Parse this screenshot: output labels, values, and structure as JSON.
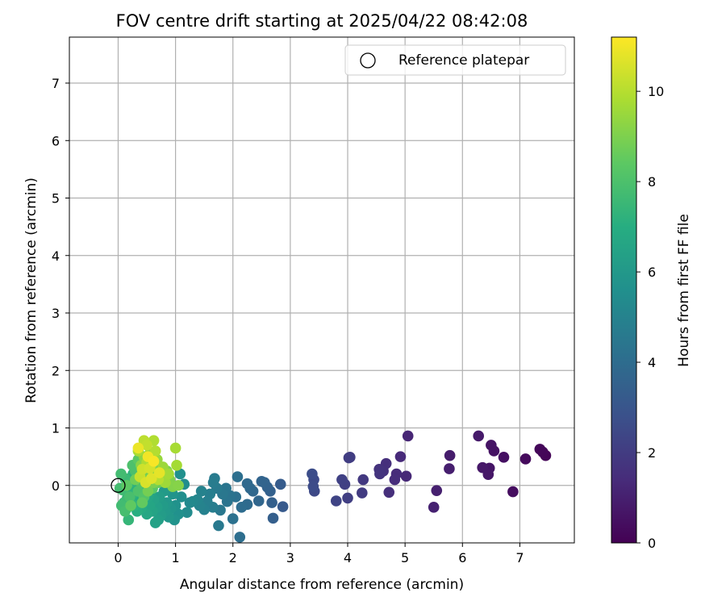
{
  "chart_data": {
    "type": "scatter",
    "title": "FOV centre drift starting at 2025/04/22 08:42:08",
    "xlabel": "Angular distance from reference (arcmin)",
    "ylabel": "Rotation from reference (arcmin)",
    "xlim": [
      -0.85,
      7.95
    ],
    "ylim": [
      -1.0,
      7.8
    ],
    "xticks": [
      0,
      1,
      2,
      3,
      4,
      5,
      6,
      7
    ],
    "yticks": [
      0,
      1,
      2,
      3,
      4,
      5,
      6,
      7
    ],
    "grid": true,
    "legend": {
      "placement": "top-right",
      "entries": [
        "Reference platepar"
      ]
    },
    "reference_point": {
      "x": 0,
      "y": 0,
      "label": "Reference platepar"
    },
    "colorbar": {
      "label": "Hours from first FF file",
      "min": 0,
      "max": 11.2,
      "ticks": [
        0,
        2,
        4,
        6,
        8,
        10
      ],
      "colormap": "viridis",
      "colormap_stops": [
        "#440154",
        "#472c7a",
        "#3b518b",
        "#2c718e",
        "#21908d",
        "#27ad81",
        "#5cc863",
        "#aadc32",
        "#fde725"
      ]
    },
    "points": [
      {
        "x": 7.45,
        "y": 0.52,
        "t": 0.1
      },
      {
        "x": 7.4,
        "y": 0.58,
        "t": 0.15
      },
      {
        "x": 7.35,
        "y": 0.63,
        "t": 0.2
      },
      {
        "x": 7.1,
        "y": 0.46,
        "t": 0.3
      },
      {
        "x": 6.88,
        "y": -0.11,
        "t": 0.4
      },
      {
        "x": 6.72,
        "y": 0.49,
        "t": 0.5
      },
      {
        "x": 6.55,
        "y": 0.6,
        "t": 0.55
      },
      {
        "x": 6.5,
        "y": 0.7,
        "t": 0.6
      },
      {
        "x": 6.47,
        "y": 0.3,
        "t": 0.65
      },
      {
        "x": 6.45,
        "y": 0.19,
        "t": 0.7
      },
      {
        "x": 6.35,
        "y": 0.31,
        "t": 0.75
      },
      {
        "x": 6.28,
        "y": 0.86,
        "t": 0.8
      },
      {
        "x": 5.78,
        "y": 0.52,
        "t": 0.9
      },
      {
        "x": 5.77,
        "y": 0.29,
        "t": 0.95
      },
      {
        "x": 5.55,
        "y": -0.09,
        "t": 1.0
      },
      {
        "x": 5.5,
        "y": -0.38,
        "t": 1.05
      },
      {
        "x": 5.05,
        "y": 0.86,
        "t": 1.2
      },
      {
        "x": 5.02,
        "y": 0.16,
        "t": 1.3
      },
      {
        "x": 4.92,
        "y": 0.5,
        "t": 1.35
      },
      {
        "x": 4.85,
        "y": 0.2,
        "t": 1.4
      },
      {
        "x": 4.82,
        "y": 0.1,
        "t": 1.45
      },
      {
        "x": 4.72,
        "y": -0.12,
        "t": 1.5
      },
      {
        "x": 4.67,
        "y": 0.38,
        "t": 1.55
      },
      {
        "x": 4.62,
        "y": 0.25,
        "t": 1.6
      },
      {
        "x": 4.55,
        "y": 0.28,
        "t": 1.65
      },
      {
        "x": 4.56,
        "y": 0.2,
        "t": 1.7
      },
      {
        "x": 4.27,
        "y": 0.1,
        "t": 1.9
      },
      {
        "x": 4.25,
        "y": -0.13,
        "t": 1.95
      },
      {
        "x": 4.04,
        "y": 0.49,
        "t": 2.0
      },
      {
        "x": 4.02,
        "y": 0.48,
        "t": 2.05
      },
      {
        "x": 4.0,
        "y": -0.22,
        "t": 2.1
      },
      {
        "x": 3.95,
        "y": 0.02,
        "t": 2.15
      },
      {
        "x": 3.9,
        "y": 0.1,
        "t": 2.2
      },
      {
        "x": 3.8,
        "y": -0.27,
        "t": 2.3
      },
      {
        "x": 3.42,
        "y": -0.1,
        "t": 2.5
      },
      {
        "x": 3.41,
        "y": 0.1,
        "t": 2.55
      },
      {
        "x": 3.4,
        "y": -0.02,
        "t": 2.6
      },
      {
        "x": 3.38,
        "y": 0.2,
        "t": 2.65
      },
      {
        "x": 2.87,
        "y": -0.37,
        "t": 3.2
      },
      {
        "x": 2.83,
        "y": 0.02,
        "t": 3.3
      },
      {
        "x": 2.7,
        "y": -0.57,
        "t": 3.4
      },
      {
        "x": 2.68,
        "y": -0.3,
        "t": 3.45
      },
      {
        "x": 2.65,
        "y": -0.1,
        "t": 3.5
      },
      {
        "x": 2.6,
        "y": -0.03,
        "t": 3.55
      },
      {
        "x": 2.55,
        "y": 0.05,
        "t": 3.6
      },
      {
        "x": 2.5,
        "y": 0.07,
        "t": 3.65
      },
      {
        "x": 2.45,
        "y": -0.27,
        "t": 3.7
      },
      {
        "x": 2.35,
        "y": -0.1,
        "t": 3.75
      },
      {
        "x": 2.3,
        "y": -0.05,
        "t": 3.8
      },
      {
        "x": 2.25,
        "y": 0.03,
        "t": 3.85
      },
      {
        "x": 2.25,
        "y": -0.33,
        "t": 3.9
      },
      {
        "x": 2.15,
        "y": -0.38,
        "t": 4.0
      },
      {
        "x": 2.12,
        "y": -0.9,
        "t": 4.05
      },
      {
        "x": 2.08,
        "y": 0.15,
        "t": 4.1
      },
      {
        "x": 2.05,
        "y": -0.2,
        "t": 4.15
      },
      {
        "x": 2.0,
        "y": -0.58,
        "t": 4.2
      },
      {
        "x": 1.95,
        "y": -0.18,
        "t": 4.3
      },
      {
        "x": 1.9,
        "y": -0.28,
        "t": 4.35
      },
      {
        "x": 1.88,
        "y": -0.05,
        "t": 4.4
      },
      {
        "x": 1.82,
        "y": -0.15,
        "t": 4.45
      },
      {
        "x": 1.78,
        "y": -0.43,
        "t": 4.5
      },
      {
        "x": 1.75,
        "y": -0.7,
        "t": 4.55
      },
      {
        "x": 1.72,
        "y": -0.05,
        "t": 4.6
      },
      {
        "x": 1.68,
        "y": 0.12,
        "t": 4.65
      },
      {
        "x": 1.66,
        "y": 0.05,
        "t": 4.7
      },
      {
        "x": 1.65,
        "y": -0.38,
        "t": 4.75
      },
      {
        "x": 1.6,
        "y": -0.15,
        "t": 4.8
      },
      {
        "x": 1.55,
        "y": -0.28,
        "t": 4.85
      },
      {
        "x": 1.5,
        "y": -0.42,
        "t": 4.9
      },
      {
        "x": 1.45,
        "y": -0.1,
        "t": 4.95
      },
      {
        "x": 1.42,
        "y": -0.35,
        "t": 5.0
      },
      {
        "x": 1.38,
        "y": -0.25,
        "t": 5.1
      },
      {
        "x": 1.3,
        "y": -0.28,
        "t": 5.2
      },
      {
        "x": 1.25,
        "y": -0.3,
        "t": 5.3
      },
      {
        "x": 1.2,
        "y": -0.47,
        "t": 5.4
      },
      {
        "x": 1.15,
        "y": 0.02,
        "t": 5.5
      },
      {
        "x": 1.1,
        "y": -0.2,
        "t": 5.55
      },
      {
        "x": 1.08,
        "y": 0.2,
        "t": 5.6
      },
      {
        "x": 1.05,
        "y": -0.5,
        "t": 5.65
      },
      {
        "x": 1.0,
        "y": -0.35,
        "t": 5.7
      },
      {
        "x": 0.98,
        "y": -0.6,
        "t": 5.75
      },
      {
        "x": 0.95,
        "y": -0.15,
        "t": 5.8
      },
      {
        "x": 0.92,
        "y": -0.4,
        "t": 5.85
      },
      {
        "x": 0.9,
        "y": 0.08,
        "t": 5.9
      },
      {
        "x": 0.88,
        "y": -0.55,
        "t": 5.95
      },
      {
        "x": 0.85,
        "y": -0.3,
        "t": 6.0
      },
      {
        "x": 0.82,
        "y": -0.45,
        "t": 6.05
      },
      {
        "x": 0.8,
        "y": -0.1,
        "t": 6.1
      },
      {
        "x": 0.78,
        "y": -0.35,
        "t": 6.15
      },
      {
        "x": 0.75,
        "y": -0.52,
        "t": 6.2
      },
      {
        "x": 0.72,
        "y": -0.2,
        "t": 6.25
      },
      {
        "x": 0.7,
        "y": -0.6,
        "t": 6.3
      },
      {
        "x": 0.68,
        "y": -0.38,
        "t": 6.35
      },
      {
        "x": 0.65,
        "y": -0.65,
        "t": 6.4
      },
      {
        "x": 0.62,
        "y": -0.25,
        "t": 6.45
      },
      {
        "x": 0.6,
        "y": -0.45,
        "t": 6.5
      },
      {
        "x": 0.58,
        "y": -0.1,
        "t": 6.55
      },
      {
        "x": 0.55,
        "y": -0.35,
        "t": 6.6
      },
      {
        "x": 0.52,
        "y": -0.2,
        "t": 6.65
      },
      {
        "x": 0.5,
        "y": -0.5,
        "t": 6.7
      },
      {
        "x": 0.48,
        "y": 0.0,
        "t": 6.75
      },
      {
        "x": 0.45,
        "y": -0.3,
        "t": 6.8
      },
      {
        "x": 0.42,
        "y": -0.15,
        "t": 6.85
      },
      {
        "x": 0.4,
        "y": -0.4,
        "t": 6.9
      },
      {
        "x": 0.38,
        "y": 0.1,
        "t": 6.95
      },
      {
        "x": 0.35,
        "y": -0.25,
        "t": 7.0
      },
      {
        "x": 0.33,
        "y": -0.45,
        "t": 7.05
      },
      {
        "x": 0.3,
        "y": -0.05,
        "t": 7.1
      },
      {
        "x": 0.28,
        "y": -0.35,
        "t": 7.15
      },
      {
        "x": 0.26,
        "y": 0.2,
        "t": 7.2
      },
      {
        "x": 0.25,
        "y": -0.15,
        "t": 7.25
      },
      {
        "x": 0.22,
        "y": -0.3,
        "t": 7.3
      },
      {
        "x": 0.2,
        "y": 0.05,
        "t": 7.35
      },
      {
        "x": 0.18,
        "y": -0.6,
        "t": 7.4
      },
      {
        "x": 0.16,
        "y": -0.22,
        "t": 7.45
      },
      {
        "x": 0.15,
        "y": -0.4,
        "t": 7.5
      },
      {
        "x": 0.12,
        "y": 0.12,
        "t": 7.55
      },
      {
        "x": 0.1,
        "y": -0.3,
        "t": 7.6
      },
      {
        "x": 0.08,
        "y": -0.08,
        "t": 7.65
      },
      {
        "x": 0.06,
        "y": -0.35,
        "t": 7.7
      },
      {
        "x": 0.05,
        "y": 0.2,
        "t": 7.75
      },
      {
        "x": 0.03,
        "y": -0.05,
        "t": 7.8
      },
      {
        "x": 0.12,
        "y": -0.45,
        "t": 7.85
      },
      {
        "x": 0.2,
        "y": -0.2,
        "t": 7.9
      },
      {
        "x": 0.3,
        "y": 0.25,
        "t": 7.95
      },
      {
        "x": 0.25,
        "y": 0.35,
        "t": 8.0
      },
      {
        "x": 0.35,
        "y": -0.1,
        "t": 8.05
      },
      {
        "x": 0.4,
        "y": 0.05,
        "t": 8.1
      },
      {
        "x": 0.45,
        "y": -0.2,
        "t": 8.15
      },
      {
        "x": 0.5,
        "y": 0.3,
        "t": 8.2
      },
      {
        "x": 0.55,
        "y": 0.1,
        "t": 8.25
      },
      {
        "x": 0.6,
        "y": -0.05,
        "t": 8.3
      },
      {
        "x": 0.35,
        "y": 0.45,
        "t": 8.35
      },
      {
        "x": 0.15,
        "y": 0.0,
        "t": 8.4
      },
      {
        "x": 0.22,
        "y": -0.35,
        "t": 8.45
      },
      {
        "x": 0.42,
        "y": -0.3,
        "t": 8.5
      },
      {
        "x": 0.65,
        "y": 0.2,
        "t": 8.55
      },
      {
        "x": 0.7,
        "y": 0.05,
        "t": 8.6
      },
      {
        "x": 0.75,
        "y": 0.3,
        "t": 8.65
      },
      {
        "x": 0.8,
        "y": 0.15,
        "t": 8.7
      },
      {
        "x": 0.3,
        "y": 0.1,
        "t": 8.75
      },
      {
        "x": 0.48,
        "y": 0.2,
        "t": 8.8
      },
      {
        "x": 0.52,
        "y": -0.1,
        "t": 8.85
      },
      {
        "x": 0.58,
        "y": 0.4,
        "t": 8.9
      },
      {
        "x": 0.62,
        "y": 0.05,
        "t": 8.95
      },
      {
        "x": 0.85,
        "y": 0.25,
        "t": 9.0
      },
      {
        "x": 0.9,
        "y": 0.1,
        "t": 9.05
      },
      {
        "x": 0.95,
        "y": -0.02,
        "t": 9.1
      },
      {
        "x": 1.05,
        "y": 0.0,
        "t": 9.15
      },
      {
        "x": 0.4,
        "y": 0.35,
        "t": 9.2
      },
      {
        "x": 0.45,
        "y": 0.5,
        "t": 9.3
      },
      {
        "x": 0.55,
        "y": 0.55,
        "t": 9.35
      },
      {
        "x": 0.6,
        "y": 0.25,
        "t": 9.4
      },
      {
        "x": 0.68,
        "y": 0.45,
        "t": 9.45
      },
      {
        "x": 0.72,
        "y": 0.15,
        "t": 9.5
      },
      {
        "x": 0.78,
        "y": 0.32,
        "t": 9.55
      },
      {
        "x": 0.82,
        "y": 0.05,
        "t": 9.6
      },
      {
        "x": 0.88,
        "y": 0.2,
        "t": 9.65
      },
      {
        "x": 1.02,
        "y": 0.35,
        "t": 9.7
      },
      {
        "x": 1.0,
        "y": 0.65,
        "t": 9.75
      },
      {
        "x": 0.35,
        "y": 0.6,
        "t": 9.8
      },
      {
        "x": 0.5,
        "y": 0.4,
        "t": 9.85
      },
      {
        "x": 0.62,
        "y": 0.78,
        "t": 9.9
      },
      {
        "x": 0.65,
        "y": 0.6,
        "t": 9.95
      },
      {
        "x": 0.7,
        "y": 0.1,
        "t": 10.0
      },
      {
        "x": 0.45,
        "y": 0.78,
        "t": 10.1
      },
      {
        "x": 0.5,
        "y": 0.7,
        "t": 10.2
      },
      {
        "x": 0.38,
        "y": 0.15,
        "t": 10.3
      },
      {
        "x": 0.42,
        "y": 0.28,
        "t": 10.4
      },
      {
        "x": 0.55,
        "y": 0.3,
        "t": 10.5
      },
      {
        "x": 0.48,
        "y": 0.05,
        "t": 10.6
      },
      {
        "x": 0.58,
        "y": 0.12,
        "t": 10.7
      },
      {
        "x": 0.72,
        "y": 0.22,
        "t": 10.8
      },
      {
        "x": 0.35,
        "y": 0.65,
        "t": 10.9
      },
      {
        "x": 0.52,
        "y": 0.5,
        "t": 11.0
      },
      {
        "x": 0.62,
        "y": 0.42,
        "t": 11.1
      }
    ]
  }
}
